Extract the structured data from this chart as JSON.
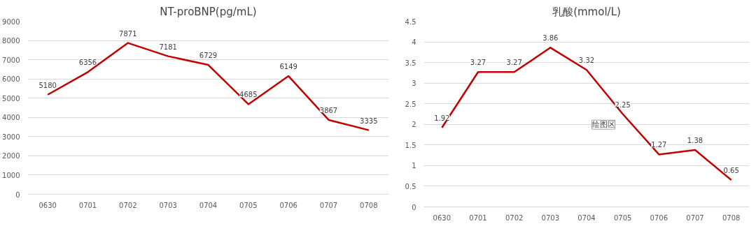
{
  "chart_data": [
    {
      "type": "line",
      "title": "NT-proBNP(pg/mL)",
      "categories": [
        "0630",
        "0701",
        "0702",
        "0703",
        "0704",
        "0705",
        "0706",
        "0707",
        "0708"
      ],
      "series": [
        {
          "color": "#c00000",
          "values": [
            5180,
            6356,
            7871,
            7181,
            6729,
            4685,
            6149,
            3867,
            3335
          ]
        }
      ],
      "ylim": [
        0,
        9000
      ],
      "yticks": [
        0,
        1000,
        2000,
        3000,
        4000,
        5000,
        6000,
        7000,
        8000,
        9000
      ],
      "grid": "y",
      "data_labels": true,
      "marker": "none",
      "line_style": "solid"
    },
    {
      "type": "line",
      "title": "乳酸(mmol/L)",
      "categories": [
        "0630",
        "0701",
        "0702",
        "0703",
        "0704",
        "0705",
        "0706",
        "0707",
        "0708"
      ],
      "series": [
        {
          "color": "#c00000",
          "values": [
            1.92,
            3.27,
            3.27,
            3.86,
            3.32,
            2.25,
            1.27,
            1.38,
            0.65
          ]
        }
      ],
      "ylim": [
        0,
        4.5
      ],
      "yticks": [
        0,
        0.5,
        1,
        1.5,
        2,
        2.5,
        3,
        3.5,
        4,
        4.5
      ],
      "grid": "y",
      "data_labels": true,
      "marker": "none",
      "line_style": "solid",
      "annotations": [
        "绘图区"
      ]
    }
  ]
}
